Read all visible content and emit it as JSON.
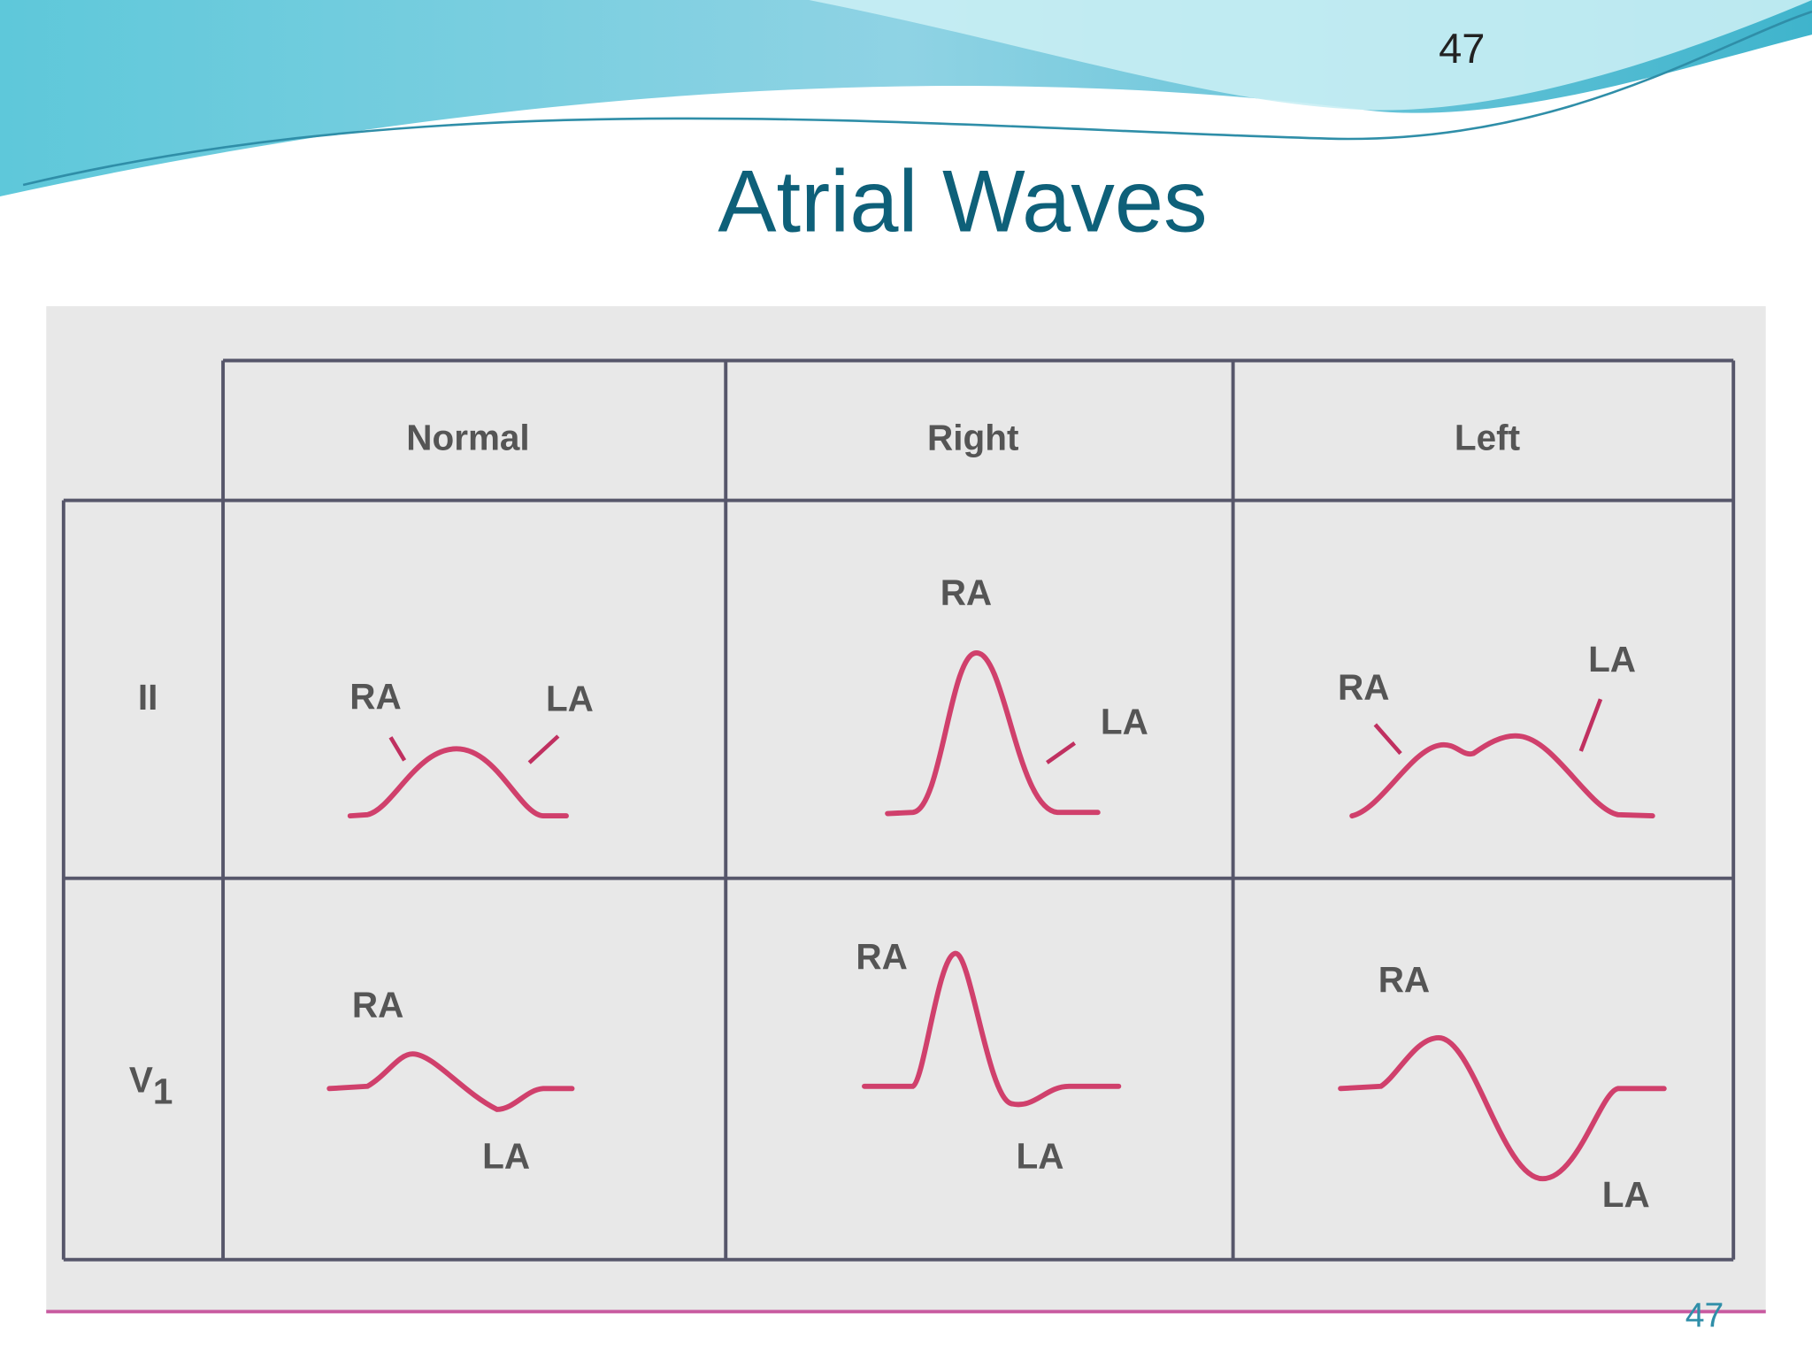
{
  "slide_number": "47",
  "title": "Atrial Waves",
  "table": {
    "columns": [
      "Normal",
      "Right",
      "Left"
    ],
    "rows": [
      {
        "lead": "II",
        "lead_subscript": null,
        "cells": [
          {
            "labels": [
              "RA",
              "LA"
            ]
          },
          {
            "labels": [
              "RA",
              "LA"
            ]
          },
          {
            "labels": [
              "RA",
              "LA"
            ]
          }
        ]
      },
      {
        "lead": "V",
        "lead_subscript": "1",
        "cells": [
          {
            "labels": [
              "RA",
              "LA"
            ]
          },
          {
            "labels": [
              "RA",
              "LA"
            ]
          },
          {
            "labels": [
              "RA",
              "LA"
            ]
          }
        ]
      }
    ]
  },
  "footer_number": "47"
}
